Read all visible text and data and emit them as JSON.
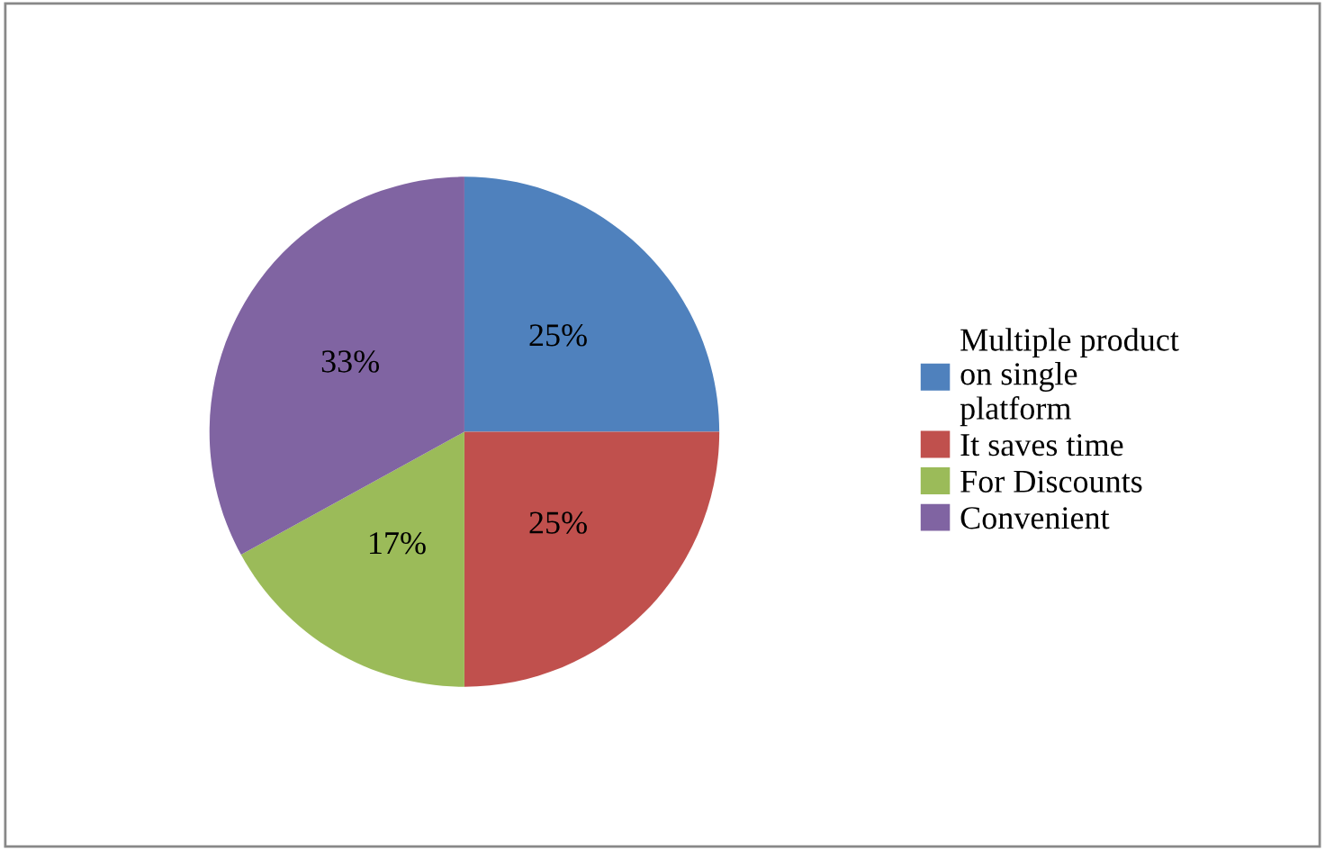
{
  "chart_data": {
    "type": "pie",
    "categories": [
      "Multiple product\non single\nplatform",
      "It saves time",
      "For Discounts",
      "Convenient"
    ],
    "values": [
      25,
      25,
      17,
      33
    ],
    "colors": [
      "#4f81bd",
      "#c0504d",
      "#9bbb59",
      "#8064a2"
    ],
    "value_labels": [
      "25%",
      "25%",
      "17%",
      "33%"
    ],
    "legend": "right"
  }
}
